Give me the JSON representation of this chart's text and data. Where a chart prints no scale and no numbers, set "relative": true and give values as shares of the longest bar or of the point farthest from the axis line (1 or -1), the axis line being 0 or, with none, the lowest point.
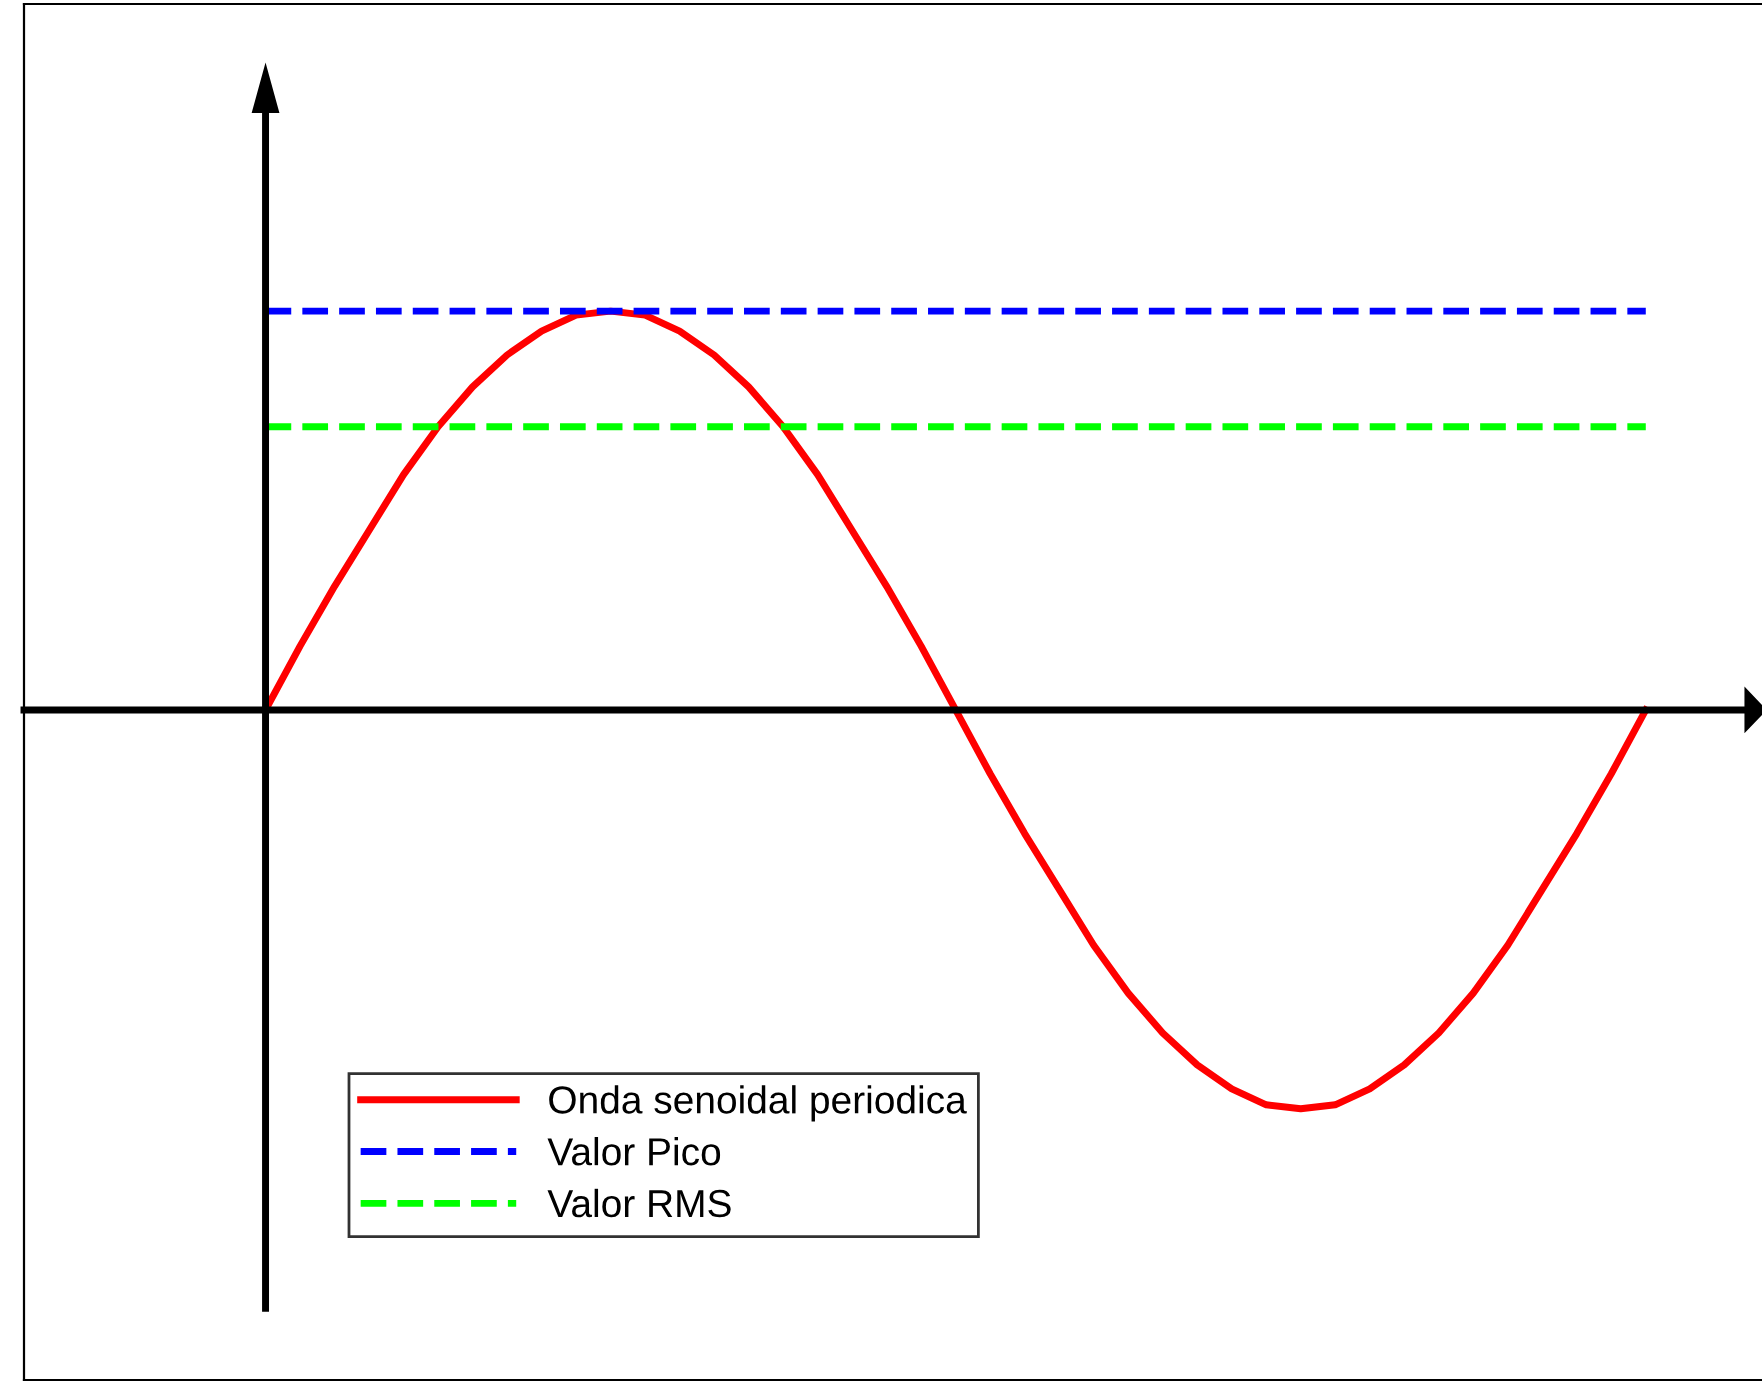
{
  "chart_data": {
    "type": "line",
    "relative": true,
    "categories": [
      null,
      null,
      null,
      null,
      null,
      null,
      null,
      null,
      null,
      null,
      null,
      null,
      null,
      null,
      null,
      null,
      null,
      null,
      null,
      null,
      null,
      null,
      null,
      null,
      null,
      null,
      null,
      null,
      null,
      null,
      null,
      null,
      null,
      null,
      null,
      null,
      null,
      null,
      null,
      null,
      null
    ],
    "series": [
      {
        "name": "Onda senoidal periodica",
        "color": "#ff0000",
        "line_style": "solid",
        "values": [
          0,
          0.16,
          0.31,
          0.45,
          0.59,
          0.71,
          0.81,
          0.89,
          0.95,
          0.99,
          1,
          0.99,
          0.95,
          0.89,
          0.81,
          0.71,
          0.59,
          0.45,
          0.31,
          0.16,
          0,
          -0.16,
          -0.31,
          -0.45,
          -0.59,
          -0.71,
          -0.81,
          -0.89,
          -0.95,
          -0.99,
          -1,
          -0.99,
          -0.95,
          -0.89,
          -0.81,
          -0.71,
          -0.59,
          -0.45,
          -0.31,
          -0.16,
          0
        ]
      },
      {
        "name": "Valor Pico",
        "color": "#0000ff",
        "line_style": "dashed",
        "values": [
          1,
          1,
          1,
          1,
          1,
          1,
          1,
          1,
          1,
          1,
          1,
          1,
          1,
          1,
          1,
          1,
          1,
          1,
          1,
          1,
          1,
          1,
          1,
          1,
          1,
          1,
          1,
          1,
          1,
          1,
          1,
          1,
          1,
          1,
          1,
          1,
          1,
          1,
          1,
          1,
          1
        ]
      },
      {
        "name": "Valor RMS",
        "color": "#00ff00",
        "line_style": "dashed",
        "values": [
          0.71,
          0.71,
          0.71,
          0.71,
          0.71,
          0.71,
          0.71,
          0.71,
          0.71,
          0.71,
          0.71,
          0.71,
          0.71,
          0.71,
          0.71,
          0.71,
          0.71,
          0.71,
          0.71,
          0.71,
          0.71,
          0.71,
          0.71,
          0.71,
          0.71,
          0.71,
          0.71,
          0.71,
          0.71,
          0.71,
          0.71,
          0.71,
          0.71,
          0.71,
          0.71,
          0.71,
          0.71,
          0.71,
          0.71,
          0.71,
          0.71
        ]
      }
    ],
    "legend": "bottom left",
    "marker": "none"
  }
}
